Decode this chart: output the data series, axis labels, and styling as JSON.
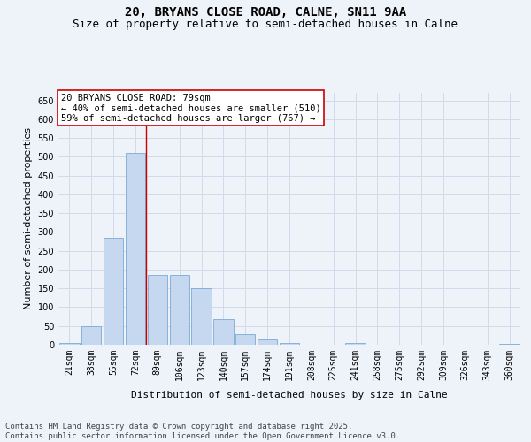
{
  "title": "20, BRYANS CLOSE ROAD, CALNE, SN11 9AA",
  "subtitle": "Size of property relative to semi-detached houses in Calne",
  "xlabel": "Distribution of semi-detached houses by size in Calne",
  "ylabel": "Number of semi-detached properties",
  "categories": [
    "21sqm",
    "38sqm",
    "55sqm",
    "72sqm",
    "89sqm",
    "106sqm",
    "123sqm",
    "140sqm",
    "157sqm",
    "174sqm",
    "191sqm",
    "208sqm",
    "225sqm",
    "241sqm",
    "258sqm",
    "275sqm",
    "292sqm",
    "309sqm",
    "326sqm",
    "343sqm",
    "360sqm"
  ],
  "values": [
    5,
    50,
    285,
    510,
    185,
    185,
    150,
    68,
    28,
    13,
    5,
    0,
    0,
    5,
    0,
    0,
    0,
    0,
    0,
    0,
    3
  ],
  "bar_color": "#c5d8f0",
  "bar_edge_color": "#7aaad4",
  "grid_color": "#d0daea",
  "background_color": "#eef2f9",
  "vline_x": 3.5,
  "vline_color": "#cc0000",
  "annotation_text": "20 BRYANS CLOSE ROAD: 79sqm\n← 40% of semi-detached houses are smaller (510)\n59% of semi-detached houses are larger (767) →",
  "annotation_box_color": "#ffffff",
  "annotation_box_edge_color": "#cc0000",
  "ylim": [
    0,
    670
  ],
  "yticks": [
    0,
    50,
    100,
    150,
    200,
    250,
    300,
    350,
    400,
    450,
    500,
    550,
    600,
    650
  ],
  "footer_line1": "Contains HM Land Registry data © Crown copyright and database right 2025.",
  "footer_line2": "Contains public sector information licensed under the Open Government Licence v3.0.",
  "title_fontsize": 10,
  "subtitle_fontsize": 9,
  "axis_label_fontsize": 8,
  "tick_fontsize": 7,
  "annotation_fontsize": 7.5,
  "footer_fontsize": 6.5
}
